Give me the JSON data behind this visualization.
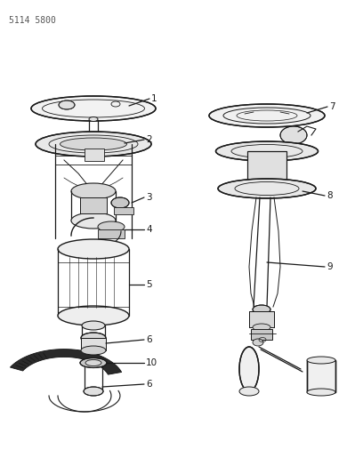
{
  "part_number": "5114 5800",
  "background_color": "#ffffff",
  "line_color": "#1a1a1a",
  "fig_width": 4.08,
  "fig_height": 5.33,
  "dpi": 100
}
